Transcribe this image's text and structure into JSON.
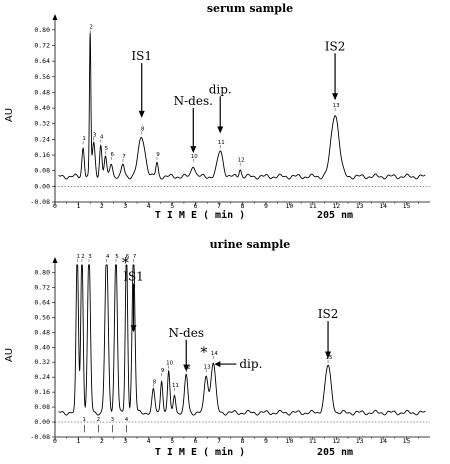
{
  "chart_data": [
    {
      "type": "line",
      "title": "serum sample",
      "ylabel": "AU",
      "xlabel": "T I M E   ( min )",
      "xlabel_right": "205 nm",
      "xlim": [
        0,
        16
      ],
      "ylim": [
        -0.08,
        0.84
      ],
      "x_ticks": [
        "0",
        "1",
        "2",
        "3",
        "4",
        "5",
        "6",
        "7",
        "8",
        "9",
        "10",
        "11",
        "12",
        "13",
        "14",
        "15"
      ],
      "y_ticks": [
        "-0.08",
        "0.00",
        "0.08",
        "0.16",
        "0.24",
        "0.32",
        "0.40",
        "0.48",
        "0.56",
        "0.64",
        "0.72",
        "0.80"
      ],
      "baseline": 0.05,
      "peaks": [
        {
          "label": "1",
          "x": 1.2,
          "h": 0.15,
          "w": 0.05
        },
        {
          "label": "2",
          "x": 1.5,
          "h": 0.72,
          "w": 0.03
        },
        {
          "label": "3",
          "x": 1.65,
          "h": 0.17,
          "w": 0.06
        },
        {
          "label": "4",
          "x": 1.95,
          "h": 0.16,
          "w": 0.05
        },
        {
          "label": "5",
          "x": 2.15,
          "h": 0.1,
          "w": 0.05
        },
        {
          "label": "6",
          "x": 2.4,
          "h": 0.07,
          "w": 0.06
        },
        {
          "label": "7",
          "x": 2.9,
          "h": 0.06,
          "w": 0.06
        },
        {
          "label": "8",
          "x": 3.7,
          "h": 0.2,
          "w": 0.15
        },
        {
          "label": "9",
          "x": 4.35,
          "h": 0.07,
          "w": 0.05
        },
        {
          "label": "10",
          "x": 5.9,
          "h": 0.06,
          "w": 0.08
        },
        {
          "label": "11",
          "x": 7.05,
          "h": 0.13,
          "w": 0.12
        },
        {
          "label": "12",
          "x": 7.9,
          "h": 0.04,
          "w": 0.05
        },
        {
          "label": "13",
          "x": 11.95,
          "h": 0.32,
          "w": 0.17
        }
      ],
      "annotations": [
        {
          "text": "IS1",
          "x": 3.7,
          "y_top": 0.63,
          "y_tip": 0.35
        },
        {
          "text": "N-des.",
          "x": 5.9,
          "y_top": 0.4,
          "y_tip": 0.17
        },
        {
          "text": "dip.",
          "x": 7.05,
          "y_top": 0.46,
          "y_tip": 0.27
        },
        {
          "text": "IS2",
          "x": 11.95,
          "y_top": 0.68,
          "y_tip": 0.44
        }
      ]
    },
    {
      "type": "line",
      "title": "urine sample",
      "ylabel": "AU",
      "xlabel": "T I M E   ( min )",
      "xlabel_right": "205 nm",
      "xlim": [
        0,
        16
      ],
      "ylim": [
        -0.08,
        0.84
      ],
      "x_ticks": [
        "0",
        "1",
        "2",
        "3",
        "4",
        "5",
        "6",
        "7",
        "8",
        "9",
        "10",
        "11",
        "12",
        "13",
        "14",
        "15"
      ],
      "y_ticks": [
        "-0.08",
        "0.00",
        "0.08",
        "0.16",
        "0.24",
        "0.32",
        "0.40",
        "0.48",
        "0.56",
        "0.64",
        "0.72",
        "0.80"
      ],
      "baseline": 0.05,
      "peaks": [
        {
          "label": "1",
          "x": 0.95,
          "h": 0.85,
          "w": 0.05
        },
        {
          "label": "2",
          "x": 1.15,
          "h": 0.85,
          "w": 0.05
        },
        {
          "label": "3",
          "x": 1.45,
          "h": 0.85,
          "w": 0.06
        },
        {
          "label": "4",
          "x": 2.2,
          "h": 0.85,
          "w": 0.07
        },
        {
          "label": "5",
          "x": 2.6,
          "h": 0.85,
          "w": 0.06
        },
        {
          "label": "6",
          "x": 3.05,
          "h": 0.85,
          "w": 0.05
        },
        {
          "label": "7",
          "x": 3.35,
          "h": 0.85,
          "w": 0.06
        },
        {
          "label": "8",
          "x": 4.2,
          "h": 0.12,
          "w": 0.06
        },
        {
          "label": "9",
          "x": 4.55,
          "h": 0.18,
          "w": 0.05
        },
        {
          "label": "10",
          "x": 4.85,
          "h": 0.22,
          "w": 0.05
        },
        {
          "label": "11",
          "x": 5.1,
          "h": 0.1,
          "w": 0.05
        },
        {
          "label": "12",
          "x": 5.6,
          "h": 0.2,
          "w": 0.07
        },
        {
          "label": "13",
          "x": 6.45,
          "h": 0.2,
          "w": 0.08
        },
        {
          "label": "14",
          "x": 6.75,
          "h": 0.27,
          "w": 0.1
        },
        {
          "label": "15",
          "x": 11.65,
          "h": 0.25,
          "w": 0.13
        }
      ],
      "event_marks": [
        1.25,
        1.85,
        2.45,
        3.05
      ],
      "event_labels": [
        "1",
        "2",
        "3",
        "4"
      ],
      "annotations": [
        {
          "text": "*",
          "x": 3.0,
          "y_top": 0.86,
          "y_tip": 0.86,
          "kind": "star"
        },
        {
          "text": "IS1",
          "x": 3.35,
          "y_top": 0.74,
          "y_tip": 0.48
        },
        {
          "text": "N-des",
          "x": 5.6,
          "y_top": 0.44,
          "y_tip": 0.27
        },
        {
          "text": "*",
          "x": 6.35,
          "y_top": 0.38,
          "y_tip": 0.38,
          "kind": "star"
        },
        {
          "text": "dip.",
          "x": 6.8,
          "y_top": 0.31,
          "y_tip": 0.31,
          "kind": "left-arrow"
        },
        {
          "text": "IS2",
          "x": 11.65,
          "y_top": 0.54,
          "y_tip": 0.34
        }
      ]
    }
  ]
}
